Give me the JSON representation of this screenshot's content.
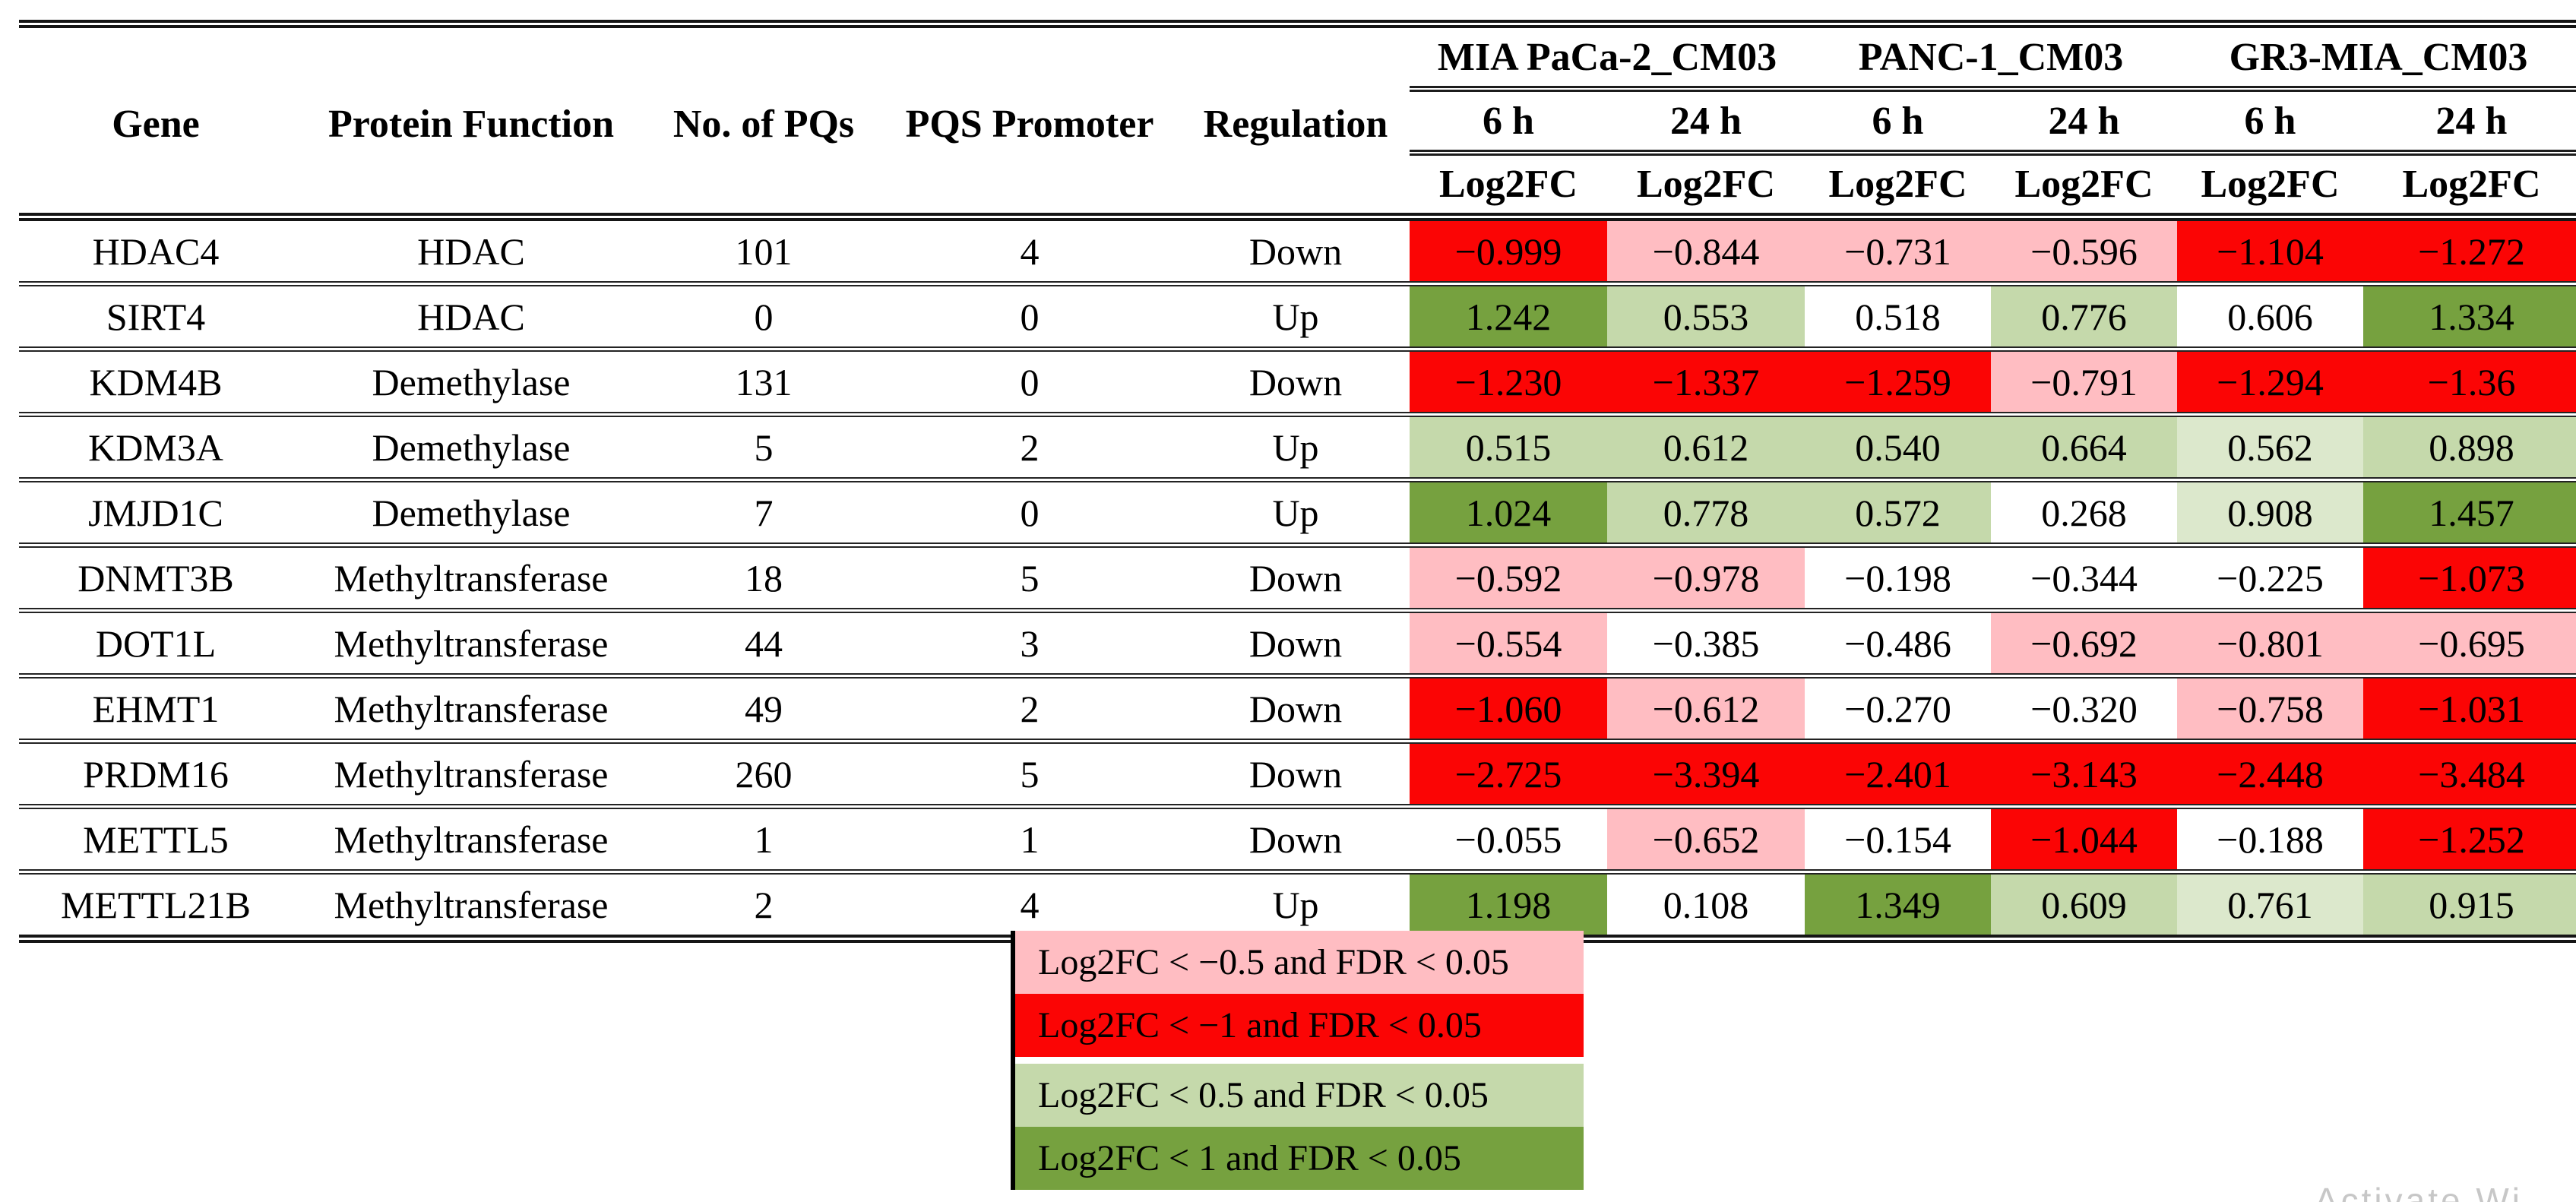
{
  "palette": {
    "red": "#FB0505",
    "pink": "#FFBDC2",
    "green_light": "#C5D9AB",
    "green_pale": "#DCE8CC",
    "green_dark": "#76A13F",
    "none": "#FFFFFF"
  },
  "table": {
    "headers": {
      "gene": "Gene",
      "protein_function": "Protein Function",
      "no_of_pqs": "No. of PQs",
      "pqs_promoter": "PQS Promoter",
      "regulation": "Regulation"
    },
    "groups": [
      {
        "label": "MIA PaCa-2_CM03"
      },
      {
        "label": "PANC-1_CM03"
      },
      {
        "label": "GR3-MIA_CM03"
      }
    ],
    "time_labels": [
      "6 h",
      "24 h",
      "6 h",
      "24 h",
      "6 h",
      "24 h"
    ],
    "measure_label": "Log2FC",
    "rows": [
      {
        "gene": "HDAC4",
        "protein_function": "HDAC",
        "no_of_pqs": "101",
        "pqs_promoter": "4",
        "regulation": "Down",
        "log2fc": [
          "−0.999",
          "−0.844",
          "−0.731",
          "−0.596",
          "−1.104",
          "−1.272"
        ],
        "colors": [
          "red",
          "pink",
          "pink",
          "pink",
          "red",
          "red"
        ]
      },
      {
        "gene": "SIRT4",
        "protein_function": "HDAC",
        "no_of_pqs": "0",
        "pqs_promoter": "0",
        "regulation": "Up",
        "log2fc": [
          "1.242",
          "0.553",
          "0.518",
          "0.776",
          "0.606",
          "1.334"
        ],
        "colors": [
          "green_dark",
          "green_light",
          "none",
          "green_light",
          "none",
          "green_dark"
        ]
      },
      {
        "gene": "KDM4B",
        "protein_function": "Demethylase",
        "no_of_pqs": "131",
        "pqs_promoter": "0",
        "regulation": "Down",
        "log2fc": [
          "−1.230",
          "−1.337",
          "−1.259",
          "−0.791",
          "−1.294",
          "−1.36"
        ],
        "colors": [
          "red",
          "red",
          "red",
          "pink",
          "red",
          "red"
        ]
      },
      {
        "gene": "KDM3A",
        "protein_function": "Demethylase",
        "no_of_pqs": "5",
        "pqs_promoter": "2",
        "regulation": "Up",
        "log2fc": [
          "0.515",
          "0.612",
          "0.540",
          "0.664",
          "0.562",
          "0.898"
        ],
        "colors": [
          "green_light",
          "green_light",
          "green_light",
          "green_light",
          "green_pale",
          "green_light"
        ]
      },
      {
        "gene": "JMJD1C",
        "protein_function": "Demethylase",
        "no_of_pqs": "7",
        "pqs_promoter": "0",
        "regulation": "Up",
        "log2fc": [
          "1.024",
          "0.778",
          "0.572",
          "0.268",
          "0.908",
          "1.457"
        ],
        "colors": [
          "green_dark",
          "green_light",
          "green_light",
          "none",
          "green_pale",
          "green_dark"
        ]
      },
      {
        "gene": "DNMT3B",
        "protein_function": "Methyltransferase",
        "no_of_pqs": "18",
        "pqs_promoter": "5",
        "regulation": "Down",
        "log2fc": [
          "−0.592",
          "−0.978",
          "−0.198",
          "−0.344",
          "−0.225",
          "−1.073"
        ],
        "colors": [
          "pink",
          "pink",
          "none",
          "none",
          "none",
          "red"
        ]
      },
      {
        "gene": "DOT1L",
        "protein_function": "Methyltransferase",
        "no_of_pqs": "44",
        "pqs_promoter": "3",
        "regulation": "Down",
        "log2fc": [
          "−0.554",
          "−0.385",
          "−0.486",
          "−0.692",
          "−0.801",
          "−0.695"
        ],
        "colors": [
          "pink",
          "none",
          "none",
          "pink",
          "pink",
          "pink"
        ]
      },
      {
        "gene": "EHMT1",
        "protein_function": "Methyltransferase",
        "no_of_pqs": "49",
        "pqs_promoter": "2",
        "regulation": "Down",
        "log2fc": [
          "−1.060",
          "−0.612",
          "−0.270",
          "−0.320",
          "−0.758",
          "−1.031"
        ],
        "colors": [
          "red",
          "pink",
          "none",
          "none",
          "pink",
          "red"
        ]
      },
      {
        "gene": "PRDM16",
        "protein_function": "Methyltransferase",
        "no_of_pqs": "260",
        "pqs_promoter": "5",
        "regulation": "Down",
        "log2fc": [
          "−2.725",
          "−3.394",
          "−2.401",
          "−3.143",
          "−2.448",
          "−3.484"
        ],
        "colors": [
          "red",
          "red",
          "red",
          "red",
          "red",
          "red"
        ]
      },
      {
        "gene": "METTL5",
        "protein_function": "Methyltransferase",
        "no_of_pqs": "1",
        "pqs_promoter": "1",
        "regulation": "Down",
        "log2fc": [
          "−0.055",
          "−0.652",
          "−0.154",
          "−1.044",
          "−0.188",
          "−1.252"
        ],
        "colors": [
          "none",
          "pink",
          "none",
          "red",
          "none",
          "red"
        ]
      },
      {
        "gene": "METTL21B",
        "protein_function": "Methyltransferase",
        "no_of_pqs": "2",
        "pqs_promoter": "4",
        "regulation": "Up",
        "log2fc": [
          "1.198",
          "0.108",
          "1.349",
          "0.609",
          "0.761",
          "0.915"
        ],
        "colors": [
          "green_dark",
          "none",
          "green_dark",
          "green_light",
          "green_pale",
          "green_light"
        ]
      }
    ]
  },
  "legend": {
    "items": [
      {
        "label": "Log2FC < −0.5 and FDR < 0.05",
        "color": "pink"
      },
      {
        "label": "Log2FC < −1 and FDR < 0.05",
        "color": "red"
      },
      {
        "label": "Log2FC < 0.5 and FDR < 0.05",
        "color": "green_light"
      },
      {
        "label": "Log2FC < 1 and FDR < 0.05",
        "color": "green_dark"
      }
    ]
  },
  "watermark_partial": "Activate Wi"
}
